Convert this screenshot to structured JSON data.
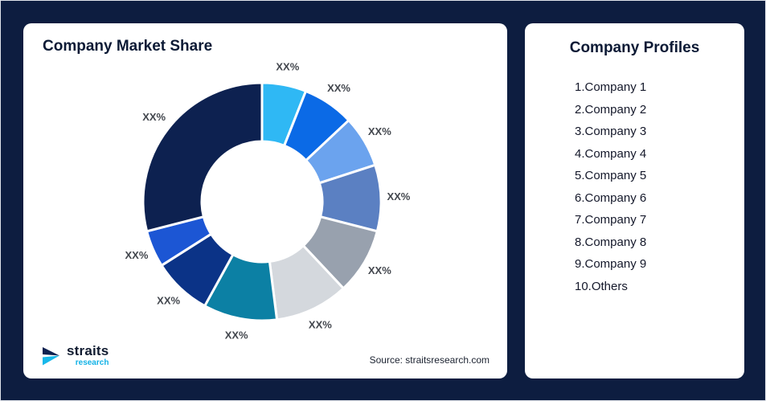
{
  "canvas": {
    "background": "#0d1d40"
  },
  "market_share_card": {
    "title": "Company Market Share",
    "source": "Source: straitsresearch.com",
    "logo": {
      "brand": "straits",
      "sub_brand": "research",
      "brand_color": "#101b30",
      "accent_color": "#14b5ea"
    }
  },
  "profiles_card": {
    "title": "Company Profiles",
    "items": [
      "1.Company 1",
      "2.Company 2",
      "3.Company 3",
      "4.Company 4",
      "5.Company 5",
      "6.Company 6",
      "7.Company 7",
      "8.Company 8",
      "9.Company 9",
      "10.Others"
    ]
  },
  "chart_data": {
    "type": "pie",
    "variant": "donut",
    "title": "Company Market Share",
    "start_angle_deg": 0,
    "direction": "clockwise",
    "segments": [
      {
        "name": "segment-1",
        "label": "XX%",
        "value": 6,
        "color": "#2fb8f4"
      },
      {
        "name": "segment-2",
        "label": "XX%",
        "value": 7,
        "color": "#0b6ae6"
      },
      {
        "name": "segment-3",
        "label": "XX%",
        "value": 7,
        "color": "#6ba3ee"
      },
      {
        "name": "segment-4",
        "label": "XX%",
        "value": 9,
        "color": "#5b80c2"
      },
      {
        "name": "segment-5",
        "label": "XX%",
        "value": 9,
        "color": "#98a1ae"
      },
      {
        "name": "segment-6",
        "label": "XX%",
        "value": 10,
        "color": "#d4d8dd"
      },
      {
        "name": "segment-7",
        "label": "XX%",
        "value": 10,
        "color": "#0c80a4"
      },
      {
        "name": "segment-8",
        "label": "XX%",
        "value": 8,
        "color": "#0b3387"
      },
      {
        "name": "segment-9",
        "label": "XX%",
        "value": 5,
        "color": "#1c56d4"
      },
      {
        "name": "segment-10",
        "label": "XX%",
        "value": 29,
        "color": "#0d2150"
      }
    ]
  }
}
